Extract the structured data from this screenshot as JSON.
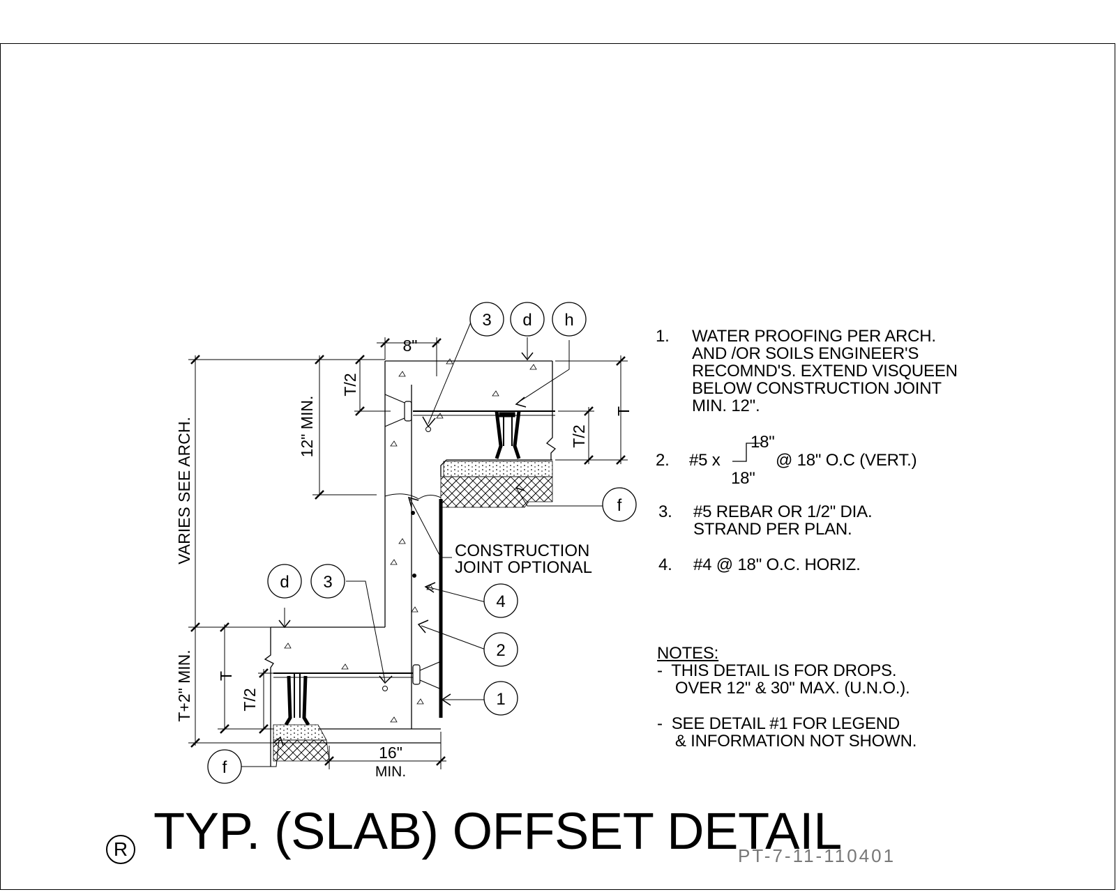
{
  "drawing": {
    "title": "TYP. (SLAB) OFFSET DETAIL",
    "detail_letter": "R",
    "drawing_id": "PT-7-11-110401"
  },
  "callouts": {
    "three": "3",
    "d": "d",
    "h": "h",
    "f": "f",
    "one": "1",
    "two": "2",
    "four": "4"
  },
  "dimensions": {
    "eight": "8\"",
    "t_half": "T/2",
    "twelve_min": "12\" MIN.",
    "varies": "VARIES SEE ARCH.",
    "t": "T",
    "t_plus_two": "T+2\" MIN.",
    "sixteen": "16\"",
    "min": "MIN."
  },
  "labels": {
    "construction_joint_1": "CONSTRUCTION",
    "construction_joint_2": "JOINT OPTIONAL"
  },
  "notes": {
    "n1_num": "1.",
    "n1_lines": [
      "WATER PROOFING PER ARCH.",
      "AND /OR SOILS ENGINEER'S",
      "RECOMND'S. EXTEND VISQUEEN",
      "BELOW CONSTRUCTION JOINT",
      "MIN. 12\"."
    ],
    "n2_num": "2.",
    "n2_prefix": "#5 x",
    "n2_top": "18\"",
    "n2_bottom": "18\"",
    "n2_suffix": "@ 18\" O.C (VERT.)",
    "n3_num": "3.",
    "n3_lines": [
      "#5 REBAR OR 1/2\" DIA.",
      "STRAND PER PLAN."
    ],
    "n4_num": "4.",
    "n4_text": "#4 @ 18\" O.C. HORIZ.",
    "general_heading": "NOTES:",
    "general_lines": [
      "-  THIS DETAIL IS FOR DROPS.",
      "    OVER 12\" & 30\" MAX. (U.N.O.).",
      "",
      "-  SEE DETAIL #1 FOR LEGEND",
      "    & INFORMATION NOT SHOWN."
    ]
  }
}
